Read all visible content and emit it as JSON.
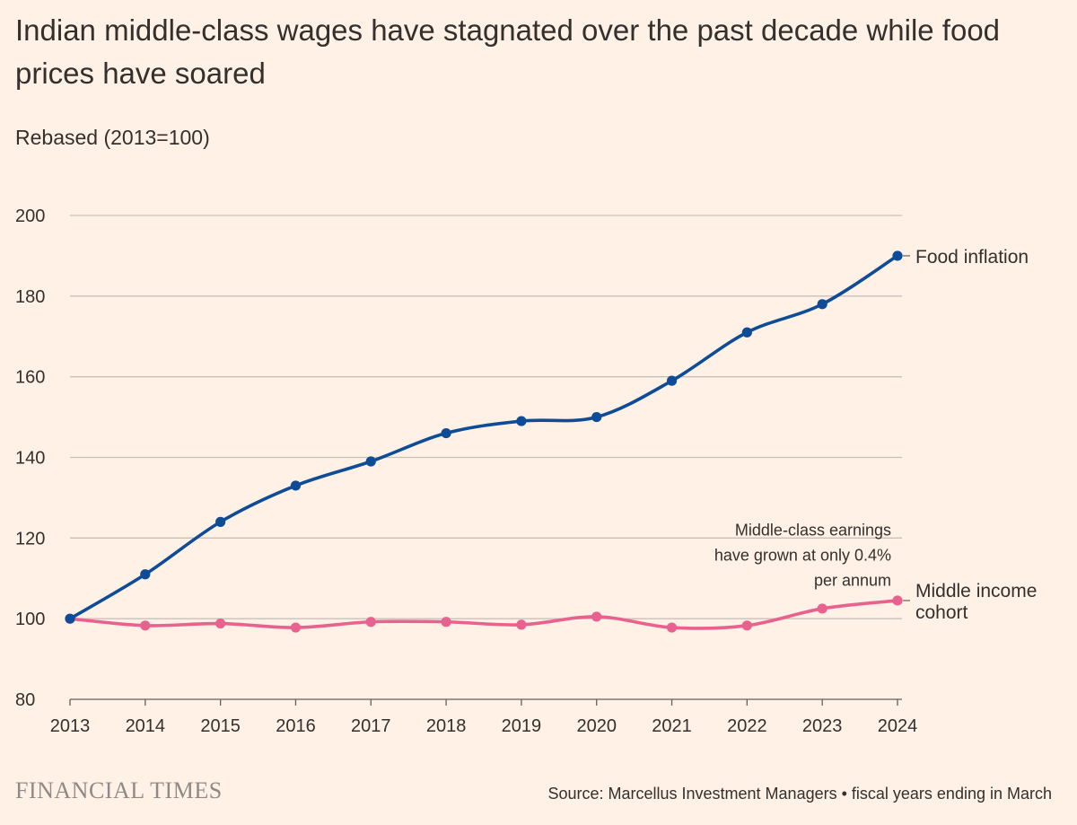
{
  "title": "Indian middle-class wages have stagnated over the past decade while food prices have soared",
  "subtitle": "Rebased (2013=100)",
  "footer": {
    "logo": "FINANCIAL TIMES",
    "source": "Source: Marcellus Investment Managers • fiscal years ending in March"
  },
  "colors": {
    "food": "#0f4c97",
    "middle": "#e8628f",
    "grid": "#c8c1ba",
    "text": "#33302e"
  },
  "chart_data": {
    "type": "line",
    "title": "Indian middle-class wages have stagnated over the past decade while food prices have soared",
    "subtitle": "Rebased (2013=100)",
    "x": [
      "2013",
      "2014",
      "2015",
      "2016",
      "2017",
      "2018",
      "2019",
      "2020",
      "2021",
      "2022",
      "2023",
      "2024"
    ],
    "ylim": [
      80,
      200
    ],
    "yticks": [
      "80",
      "100",
      "120",
      "140",
      "160",
      "180",
      "200"
    ],
    "grid": true,
    "legend": "direct labels at line ends",
    "series": [
      {
        "name": "Food inflation",
        "color": "#0f4c97",
        "values": [
          100,
          111,
          124,
          133,
          139,
          146,
          149,
          150,
          159,
          171,
          178,
          190
        ]
      },
      {
        "name_lines": [
          "Middle income",
          "cohort"
        ],
        "color": "#e8628f",
        "values": [
          100,
          98.3,
          98.8,
          97.8,
          99.2,
          99.2,
          98.5,
          100.5,
          97.8,
          98.3,
          102.5,
          104.5
        ]
      }
    ],
    "annotation": {
      "lines": [
        "Middle-class earnings",
        "have grown at only 0.4%",
        "per annum"
      ],
      "anchor_x": "2024",
      "anchor_y": 114
    }
  }
}
